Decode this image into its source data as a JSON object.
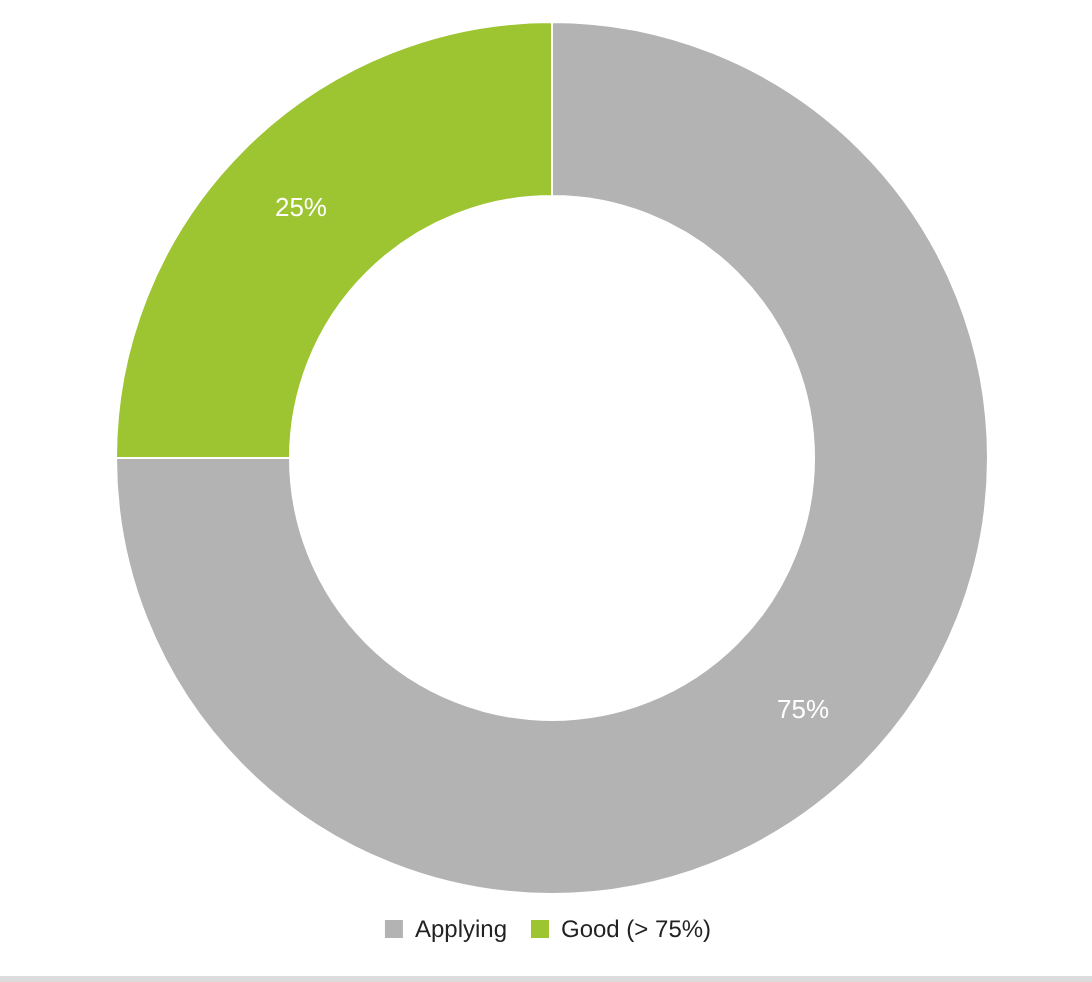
{
  "chart_data": {
    "type": "donut",
    "categories": [
      "Applying",
      "Good (> 75%)"
    ],
    "values": [
      75,
      25
    ],
    "colors": [
      "#b3b3b3",
      "#9dc431"
    ],
    "value_labels": [
      "75%",
      "25%"
    ],
    "legend": "bottom"
  }
}
